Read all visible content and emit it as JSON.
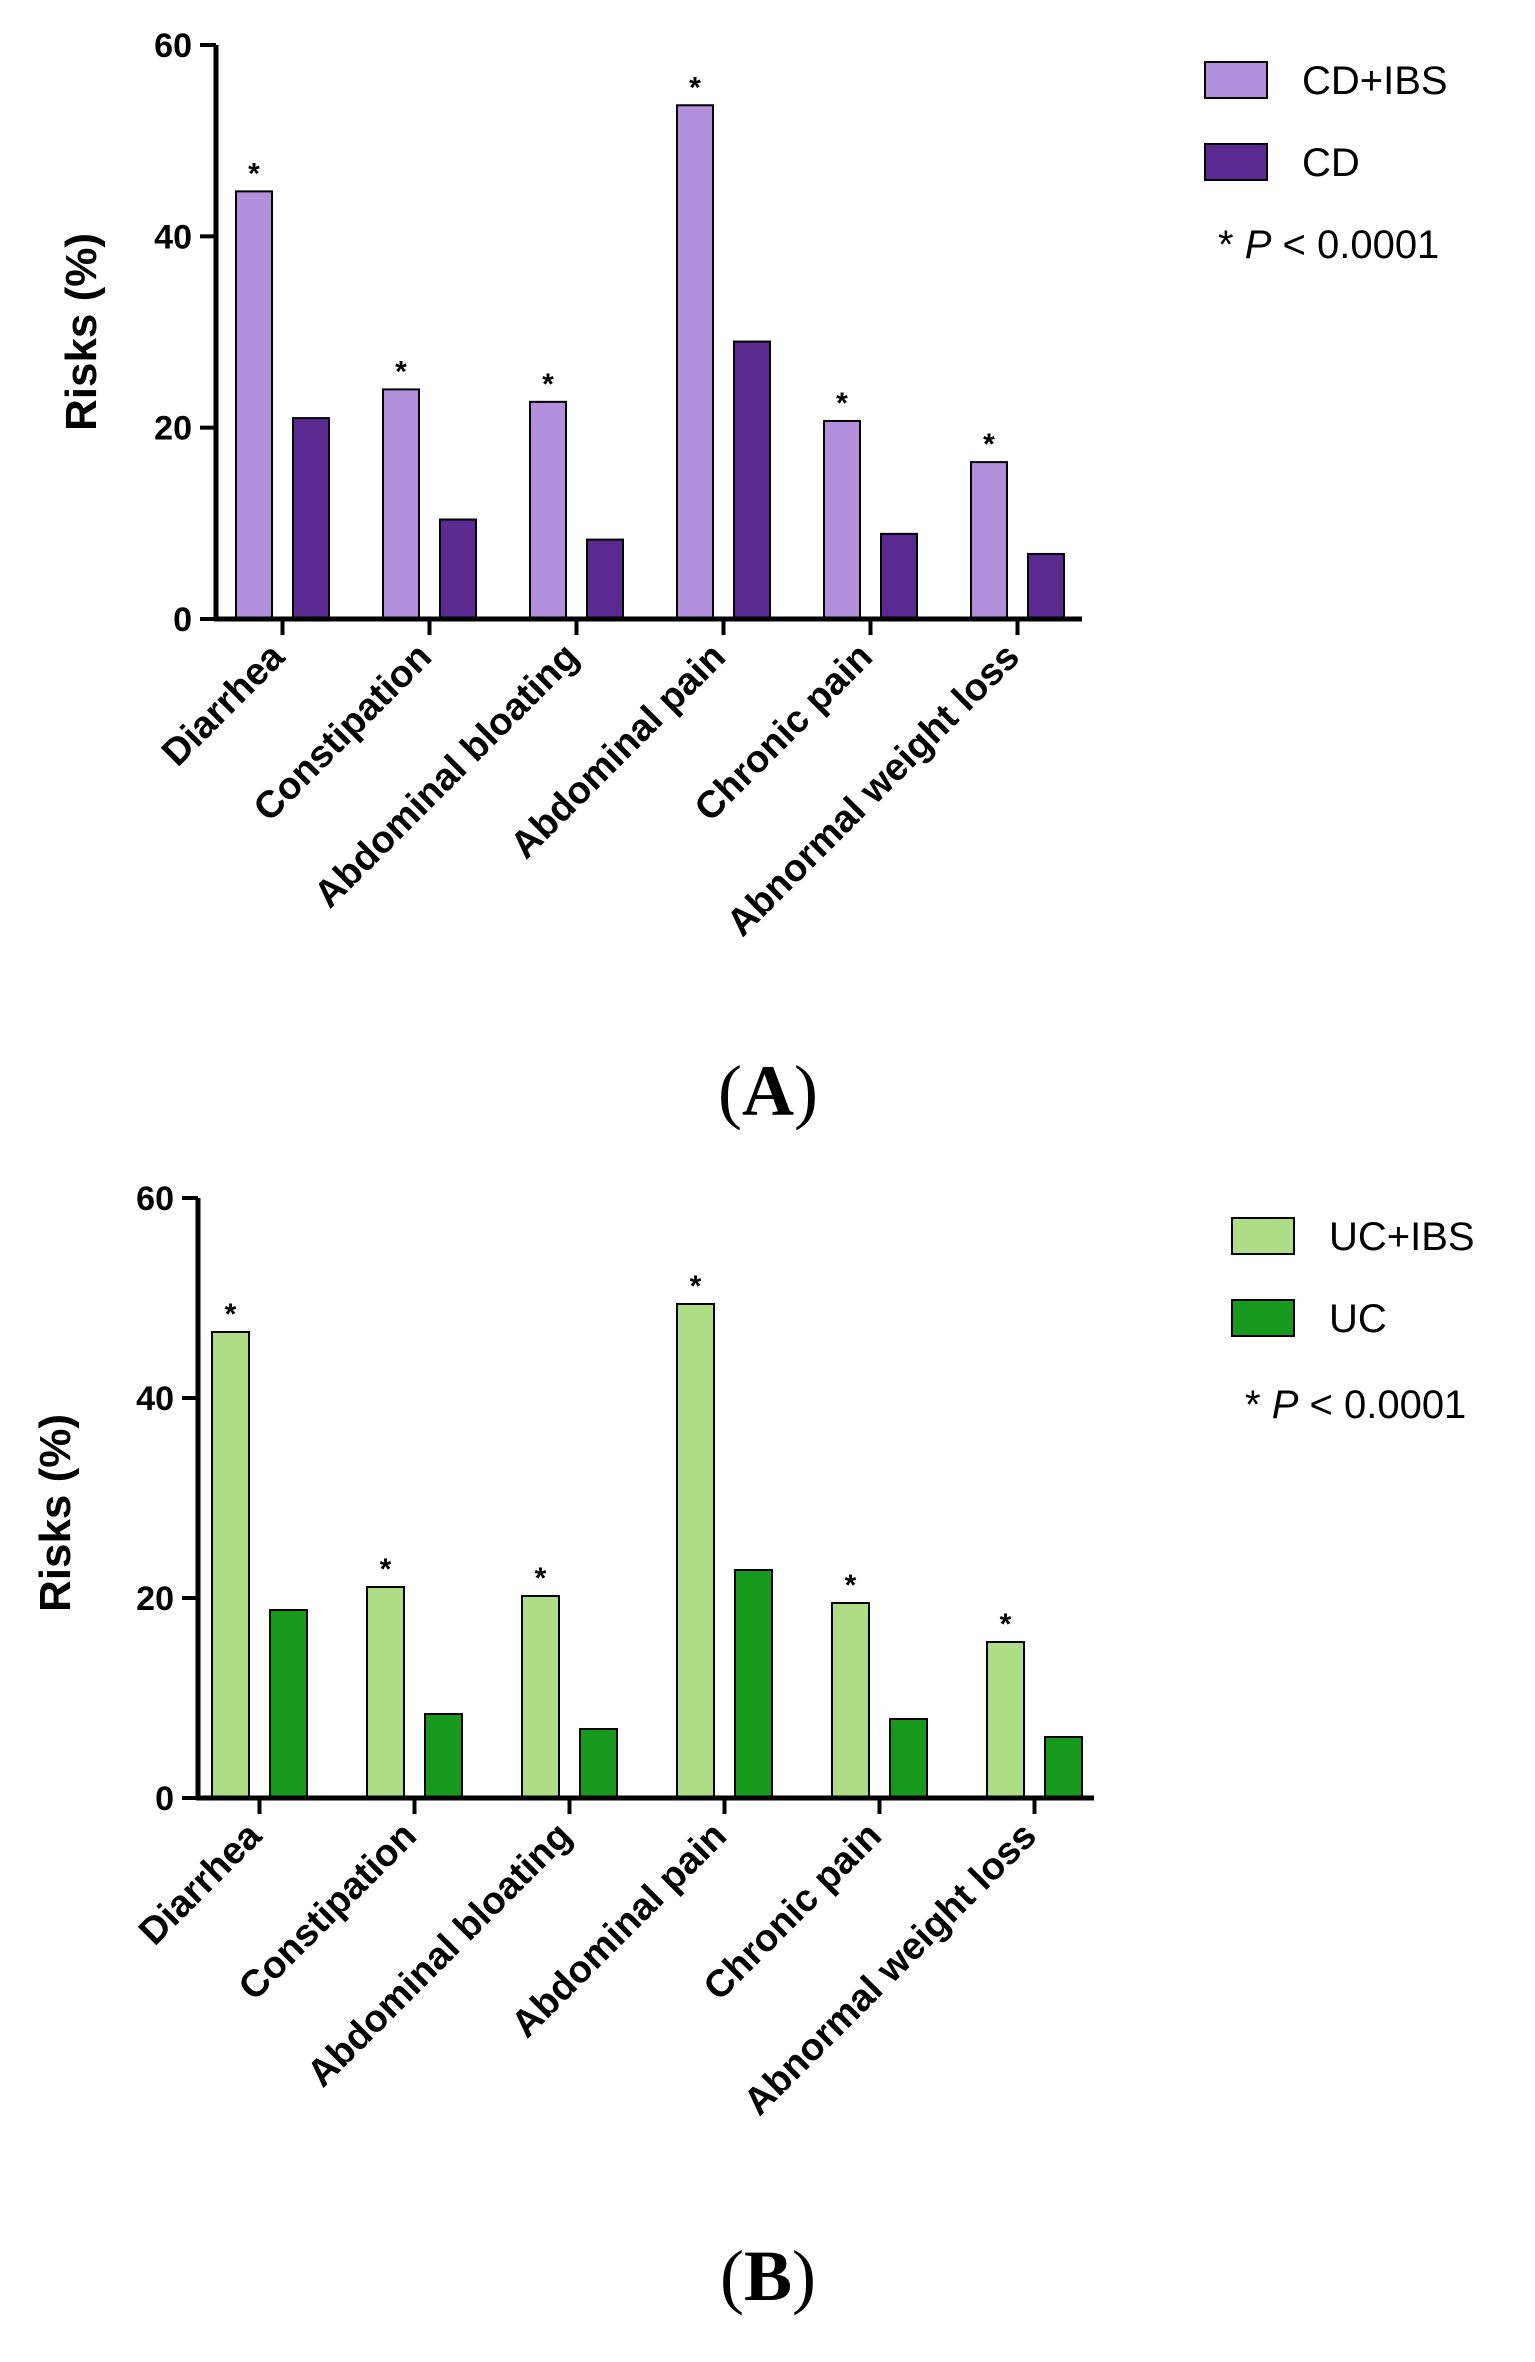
{
  "chart_data": [
    {
      "type": "bar",
      "panel": "A",
      "categories": [
        "Diarrhea",
        "Constipation",
        "Abdominal bloating",
        "Abdominal pain",
        "Chronic pain",
        "Abnormal weight loss"
      ],
      "series": [
        {
          "name": "CD+IBS",
          "color": "#b28fdb",
          "values": [
            44.7,
            24.0,
            22.7,
            53.7,
            20.7,
            16.4
          ]
        },
        {
          "name": "CD",
          "color": "#5a2a91",
          "values": [
            21.0,
            10.4,
            8.3,
            29.0,
            8.9,
            6.8
          ]
        }
      ],
      "significance_marker": "*",
      "significant": [
        true,
        true,
        true,
        true,
        true,
        true
      ],
      "note": {
        "star": "*",
        "p": "P",
        "rest": "< 0.0001"
      },
      "ylabel": "Risks (%)",
      "yticks": [
        "0",
        "20",
        "40",
        "60"
      ],
      "ylim": [
        0,
        60
      ],
      "panel_label": {
        "open": "(",
        "letter": "A",
        "close": ")"
      }
    },
    {
      "type": "bar",
      "panel": "B",
      "categories": [
        "Diarrhea",
        "Constipation",
        "Abdominal bloating",
        "Abdominal pain",
        "Chronic pain",
        "Abnormal weight loss"
      ],
      "series": [
        {
          "name": "UC+IBS",
          "color": "#aedd85",
          "values": [
            46.6,
            21.1,
            20.2,
            49.4,
            19.5,
            15.6
          ]
        },
        {
          "name": "UC",
          "color": "#169a1c",
          "values": [
            18.8,
            8.4,
            6.9,
            22.8,
            7.9,
            6.1
          ]
        }
      ],
      "significance_marker": "*",
      "significant": [
        true,
        true,
        true,
        true,
        true,
        true
      ],
      "note": {
        "star": "*",
        "p": "P",
        "rest": "< 0.0001"
      },
      "ylabel": "Risks (%)",
      "yticks": [
        "0",
        "20",
        "40",
        "60"
      ],
      "ylim": [
        0,
        60
      ],
      "panel_label": {
        "open": "(",
        "letter": "B",
        "close": ")"
      }
    }
  ]
}
